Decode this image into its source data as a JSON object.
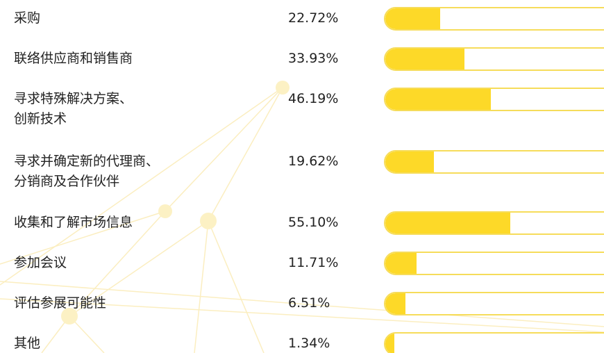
{
  "chart_data": {
    "type": "bar",
    "orientation": "horizontal",
    "categories": [
      "采购",
      "联络供应商和销售商",
      "寻求特殊解决方案、\n创新技术",
      "寻求并确定新的代理商、\n分销商及合作伙伴",
      "收集和了解市场信息",
      "参加会议",
      "评估参展可能性",
      "其他"
    ],
    "values": [
      22.72,
      33.93,
      46.19,
      19.62,
      55.1,
      11.71,
      6.51,
      1.34
    ],
    "value_labels": [
      "22.72%",
      "33.93%",
      "46.19%",
      "19.62%",
      "55.10%",
      "11.71%",
      "6.51%",
      "1.34%"
    ],
    "color": "#fdd928"
  }
}
